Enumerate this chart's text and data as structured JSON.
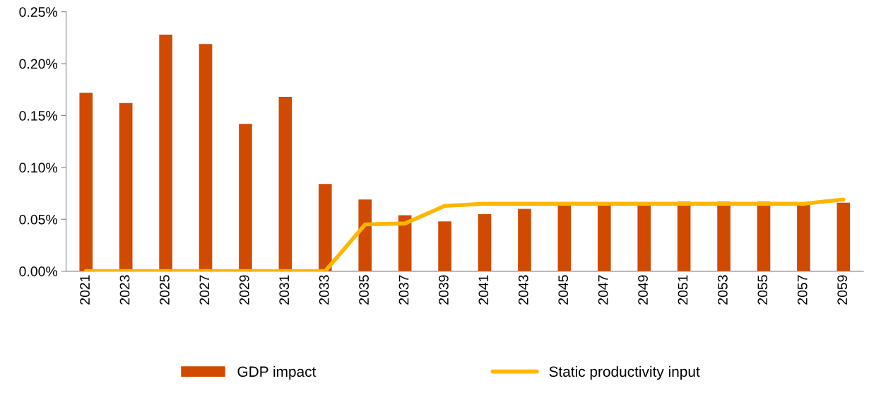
{
  "chart_data": {
    "type": "bar",
    "categories": [
      "2021",
      "2023",
      "2025",
      "2027",
      "2029",
      "2031",
      "2033",
      "2035",
      "2037",
      "2039",
      "2041",
      "2043",
      "2045",
      "2047",
      "2049",
      "2051",
      "2053",
      "2055",
      "2057",
      "2059"
    ],
    "series": [
      {
        "name": "GDP impact",
        "color": "#d04a02",
        "values": [
          0.172,
          0.162,
          0.228,
          0.219,
          0.142,
          0.168,
          0.084,
          0.069,
          0.054,
          0.048,
          0.055,
          0.06,
          0.064,
          0.064,
          0.065,
          0.067,
          0.067,
          0.067,
          0.065,
          0.066
        ]
      },
      {
        "name": "Static productivity input",
        "type": "line",
        "color": "#ffb600",
        "values": [
          0,
          0,
          0,
          0,
          0,
          0,
          0,
          0.045,
          0.046,
          0.063,
          0.065,
          0.065,
          0.065,
          0.065,
          0.065,
          0.065,
          0.065,
          0.065,
          0.065,
          0.069
        ]
      }
    ],
    "ylim": [
      0,
      0.25
    ],
    "yticks": [
      {
        "value": 0,
        "label": "0.00%"
      },
      {
        "value": 0.05,
        "label": "0.05%"
      },
      {
        "value": 0.1,
        "label": "0.10%"
      },
      {
        "value": 0.15,
        "label": "0.15%"
      },
      {
        "value": 0.2,
        "label": "0.20%"
      },
      {
        "value": 0.25,
        "label": "0.25%"
      }
    ],
    "grid": false,
    "legend": "bottom"
  }
}
